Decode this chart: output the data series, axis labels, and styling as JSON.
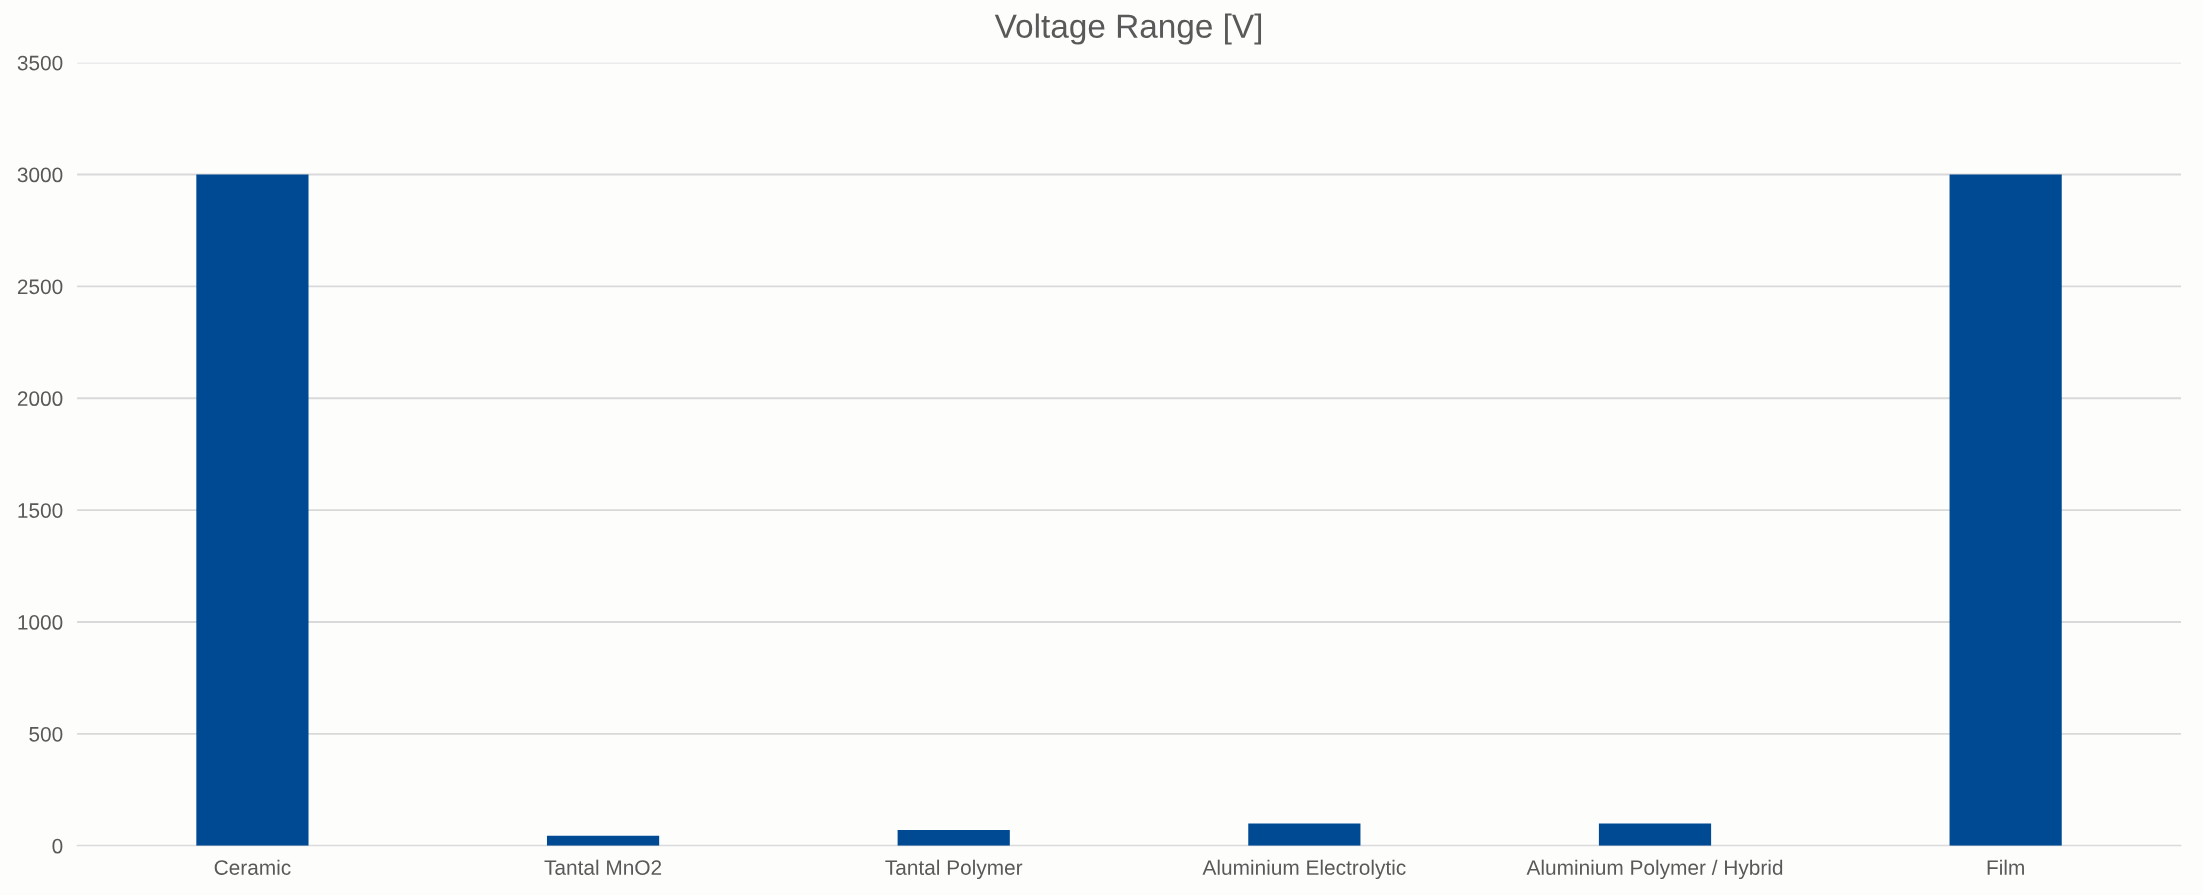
{
  "chart_data": {
    "type": "bar",
    "title": "Voltage Range [V]",
    "categories": [
      "Ceramic",
      "Tantal MnO2",
      "Tantal Polymer",
      "Aluminium Electrolytic",
      "Aluminium Polymer / Hybrid",
      "Film"
    ],
    "values": [
      3000,
      45,
      70,
      100,
      100,
      3000
    ],
    "color": "#004a93",
    "ylim": [
      0,
      3500
    ],
    "yticks": [
      0,
      500,
      1000,
      1500,
      2000,
      2500,
      3000,
      3500
    ],
    "grid": "y",
    "legend": false
  }
}
